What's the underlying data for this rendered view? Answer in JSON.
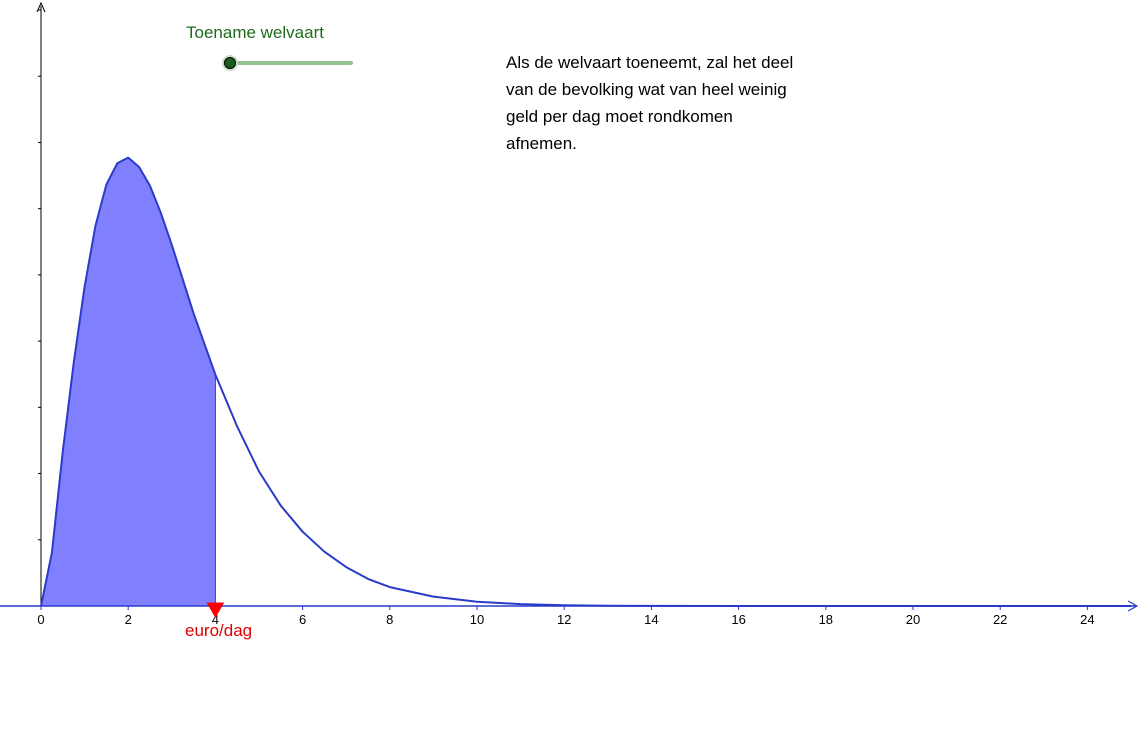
{
  "slider": {
    "label": "Toename welvaart",
    "value_fraction": 0.0,
    "track_color": "#93c393",
    "knob_color": "#1b5e1b"
  },
  "note": {
    "lines": [
      "Als de welvaart toeneemt, zal het deel",
      "van de bevolking wat van heel weinig",
      "geld per dag moet rondkomen",
      "afnemen."
    ]
  },
  "chart_data": {
    "type": "area",
    "xlabel": "euro/dag",
    "ylabel": "",
    "xlim": [
      0,
      25
    ],
    "ylim": [
      0,
      0.196
    ],
    "x_ticks": [
      0,
      2,
      4,
      6,
      8,
      10,
      12,
      14,
      16,
      18,
      20,
      22,
      24
    ],
    "y_tick_count": 9,
    "marker_x": 4,
    "curve": {
      "x": [
        0,
        0.25,
        0.5,
        0.75,
        1,
        1.25,
        1.5,
        1.75,
        2,
        2.25,
        2.5,
        2.75,
        3,
        3.5,
        4,
        4.5,
        5,
        5.5,
        6,
        6.5,
        7,
        7.5,
        8,
        9,
        10,
        11,
        12,
        13,
        14,
        16,
        18,
        20,
        22,
        24,
        25
      ],
      "y": [
        0,
        0.0226,
        0.0655,
        0.103,
        0.1353,
        0.1612,
        0.1786,
        0.1876,
        0.19,
        0.186,
        0.178,
        0.1665,
        0.153,
        0.124,
        0.098,
        0.076,
        0.057,
        0.0425,
        0.0315,
        0.023,
        0.0165,
        0.0115,
        0.008,
        0.004,
        0.0018,
        0.0008,
        0.0003,
        0.0001,
        4e-05,
        0,
        0,
        0,
        0,
        0,
        0
      ]
    },
    "shaded_range": [
      0,
      4
    ],
    "colors": {
      "curve": "#2a3bc8",
      "fill": "#8080ff",
      "axis": "#2a3bc8",
      "marker": "#ff0000",
      "xlabel": "#e00000"
    }
  }
}
